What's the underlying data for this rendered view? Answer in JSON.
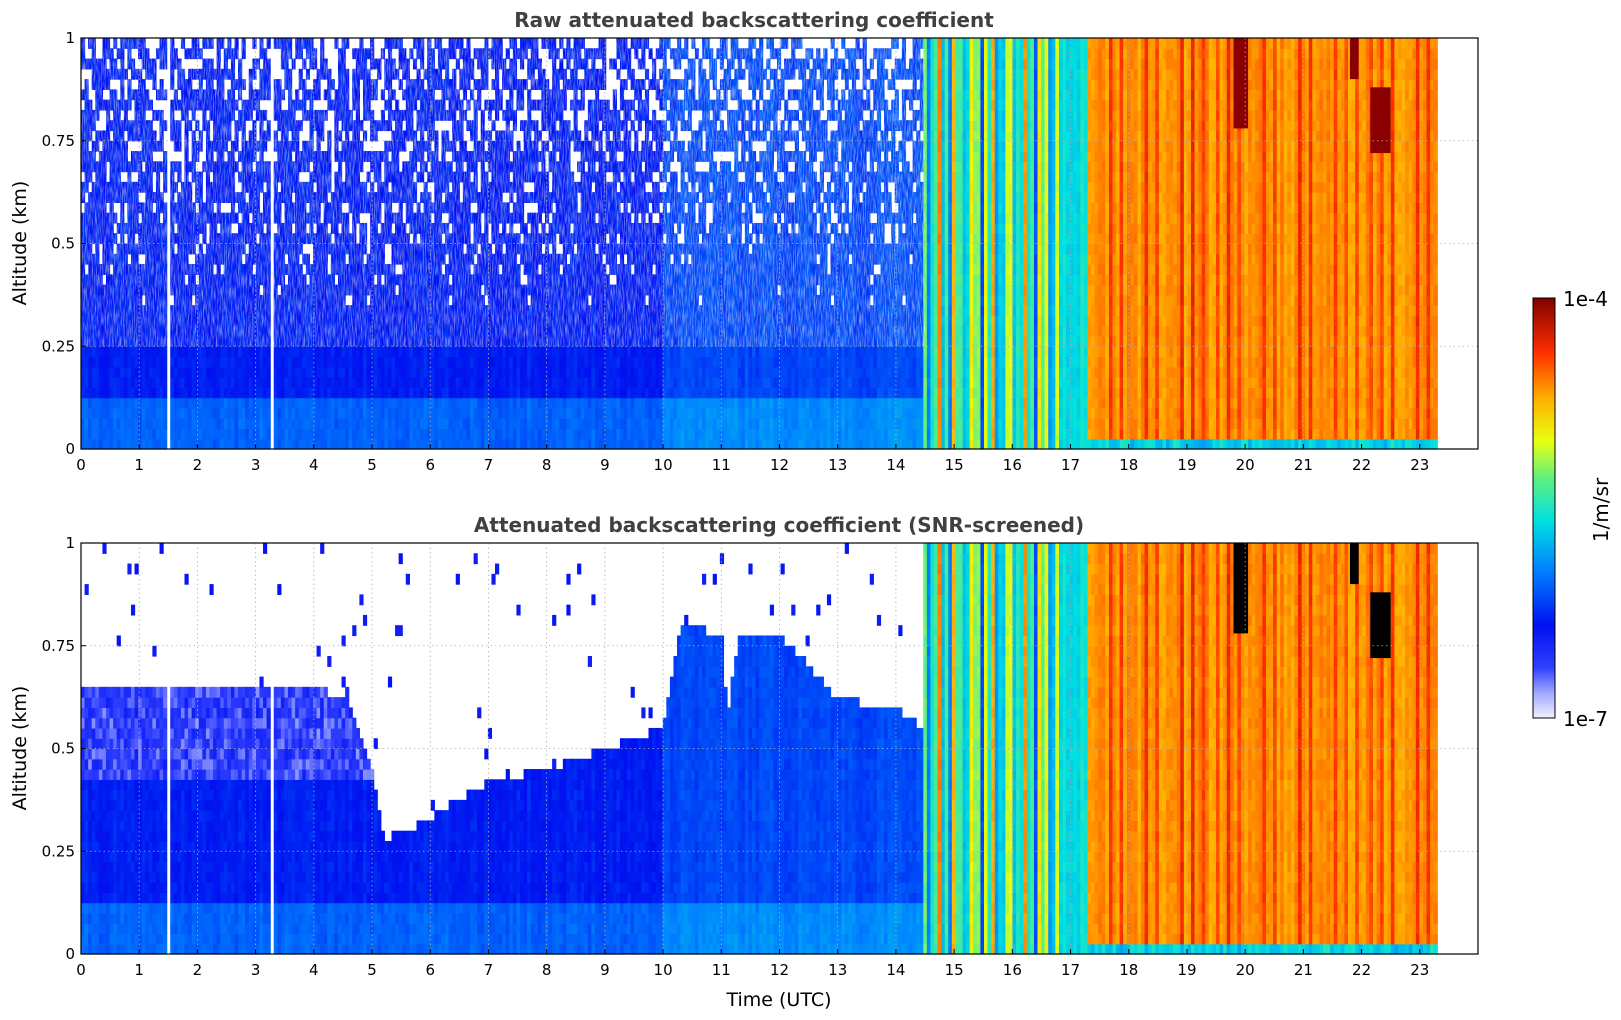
{
  "chart_data": [
    {
      "type": "heatmap",
      "title": "Raw attenuated backscattering coefficient",
      "xlabel": "",
      "ylabel": "Altitude (km)",
      "xlim": [
        0,
        24
      ],
      "ylim": [
        0,
        1
      ],
      "xticks": [
        "0",
        "1",
        "2",
        "3",
        "4",
        "5",
        "6",
        "7",
        "8",
        "9",
        "10",
        "11",
        "12",
        "13",
        "14",
        "15",
        "16",
        "17",
        "18",
        "19",
        "20",
        "21",
        "22",
        "23"
      ],
      "yticks": [
        "0",
        "0.25",
        "0.5",
        "0.75",
        "1"
      ],
      "grid": true,
      "data_end_time": 23.3,
      "data_gaps": [
        [
          1.45,
          1.55
        ],
        [
          3.25,
          3.32
        ],
        [
          3.72,
          3.74
        ]
      ],
      "segments": [
        {
          "start": 0,
          "end": 14.5,
          "level": 0.22,
          "top_log_scale": "noisy-blue"
        },
        {
          "start": 14.5,
          "end": 17.3,
          "level": 0.55,
          "note": "alternating cyan/yellow/red columns"
        },
        {
          "start": 17.3,
          "end": 23.3,
          "level": 0.78,
          "note": "orange with red columns"
        }
      ],
      "saturated_features": [
        {
          "t": [
            19.8,
            20.05
          ],
          "alt": [
            0.78,
            1.0
          ]
        },
        {
          "t": [
            21.8,
            21.95
          ],
          "alt": [
            0.9,
            1.0
          ]
        },
        {
          "t": [
            22.15,
            22.5
          ],
          "alt": [
            0.72,
            0.88
          ]
        }
      ]
    },
    {
      "type": "heatmap",
      "title": "Attenuated backscattering coefficient (SNR-screened)",
      "xlabel": "Time (UTC)",
      "ylabel": "Altitude (km)",
      "xlim": [
        0,
        24
      ],
      "ylim": [
        0,
        1
      ],
      "xticks": [
        "0",
        "1",
        "2",
        "3",
        "4",
        "5",
        "6",
        "7",
        "8",
        "9",
        "10",
        "11",
        "12",
        "13",
        "14",
        "15",
        "16",
        "17",
        "18",
        "19",
        "20",
        "21",
        "22",
        "23"
      ],
      "yticks": [
        "0",
        "0.25",
        "0.5",
        "0.75",
        "1"
      ],
      "grid": true,
      "data_end_time": 23.3,
      "screen_top_profile": [
        [
          0,
          0.66
        ],
        [
          1,
          0.66
        ],
        [
          2,
          0.66
        ],
        [
          3,
          0.66
        ],
        [
          4,
          0.65
        ],
        [
          4.6,
          0.62
        ],
        [
          5.0,
          0.45
        ],
        [
          5.2,
          0.28
        ],
        [
          5.6,
          0.3
        ],
        [
          6.0,
          0.33
        ],
        [
          6.5,
          0.38
        ],
        [
          7.0,
          0.42
        ],
        [
          8.0,
          0.45
        ],
        [
          9.0,
          0.5
        ],
        [
          10.0,
          0.55
        ],
        [
          10.3,
          0.8
        ],
        [
          11.0,
          0.78
        ],
        [
          11.1,
          0.58
        ],
        [
          11.3,
          0.78
        ],
        [
          12.0,
          0.78
        ],
        [
          12.5,
          0.7
        ],
        [
          13.0,
          0.62
        ],
        [
          14.0,
          0.6
        ],
        [
          14.5,
          0.55
        ],
        [
          14.5,
          1.0
        ],
        [
          23.3,
          1.0
        ]
      ]
    }
  ],
  "colorbar": {
    "label": "1/m/sr",
    "min_label": "1e-7",
    "max_label": "1e-4",
    "scale": "log",
    "colormap": "jet"
  }
}
